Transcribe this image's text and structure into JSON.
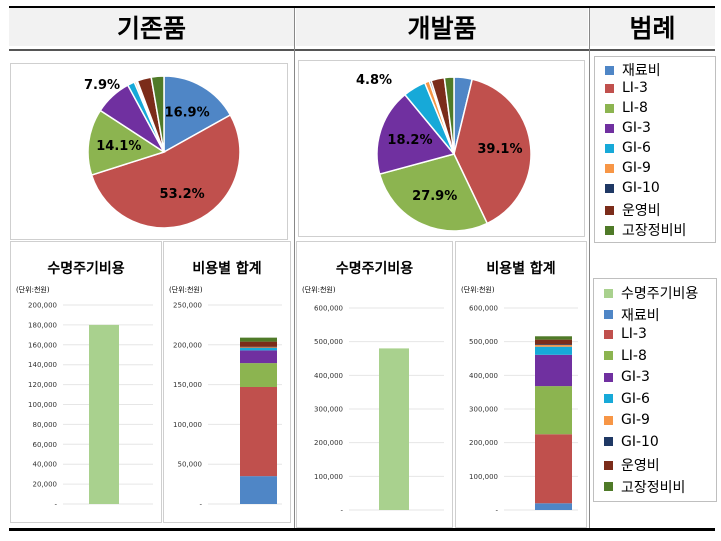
{
  "headers": {
    "existing": "기존품",
    "developed": "개발품",
    "legend": "범례"
  },
  "colors": {
    "재료비": "#4f86c6",
    "LI-3": "#c0504d",
    "LI-8": "#8cb450",
    "GI-3": "#7030a0",
    "GI-6": "#17a9d8",
    "GI-9": "#f79646",
    "GI-10": "#1f3864",
    "운영비": "#7b2c1a",
    "고장정비비": "#4f7a28",
    "수명주기비용": "#a9d18e"
  },
  "legend_top": {
    "items": [
      "재료비",
      "LI-3",
      "LI-8",
      "GI-3",
      "GI-6",
      "GI-9",
      "GI-10",
      "운영비",
      "고장정비비"
    ]
  },
  "legend_bottom": {
    "items": [
      "수명주기비용",
      "재료비",
      "LI-3",
      "LI-8",
      "GI-3",
      "GI-6",
      "GI-9",
      "GI-10",
      "운영비",
      "고장정비비"
    ]
  },
  "chart_data": [
    {
      "type": "pie",
      "id": "pie-existing",
      "slices": [
        {
          "name": "재료비",
          "value": 16.9,
          "label": "16.9%"
        },
        {
          "name": "LI-3",
          "value": 53.2,
          "label": "53.2%"
        },
        {
          "name": "LI-8",
          "value": 14.1,
          "label": "14.1%"
        },
        {
          "name": "GI-3",
          "value": 7.9,
          "label": "7.9%"
        },
        {
          "name": "GI-6",
          "value": 1.5,
          "label": ""
        },
        {
          "name": "GI-9",
          "value": 0.4,
          "label": ""
        },
        {
          "name": "GI-10",
          "value": 0.3,
          "label": ""
        },
        {
          "name": "운영비",
          "value": 3.0,
          "label": ""
        },
        {
          "name": "고장정비비",
          "value": 2.7,
          "label": ""
        }
      ]
    },
    {
      "type": "pie",
      "id": "pie-developed",
      "slices": [
        {
          "name": "재료비",
          "value": 3.8,
          "label": ""
        },
        {
          "name": "LI-3",
          "value": 39.1,
          "label": "39.1%"
        },
        {
          "name": "LI-8",
          "value": 27.9,
          "label": "27.9%"
        },
        {
          "name": "GI-3",
          "value": 18.2,
          "label": "18.2%"
        },
        {
          "name": "GI-6",
          "value": 4.8,
          "label": "4.8%"
        },
        {
          "name": "GI-9",
          "value": 1.0,
          "label": ""
        },
        {
          "name": "GI-10",
          "value": 0.4,
          "label": ""
        },
        {
          "name": "운영비",
          "value": 2.8,
          "label": ""
        },
        {
          "name": "고장정비비",
          "value": 2.0,
          "label": ""
        }
      ]
    },
    {
      "type": "bar",
      "id": "bar-lcc-existing",
      "title": "수명주기비용",
      "unit": "(단위:천원)",
      "ylim": [
        0,
        200000
      ],
      "ticks": [
        0,
        20000,
        40000,
        60000,
        80000,
        100000,
        120000,
        140000,
        160000,
        180000,
        200000
      ],
      "tick_labels": [
        "-",
        "20,000",
        "40,000",
        "60,000",
        "80,000",
        "100,000",
        "120,000",
        "140,000",
        "160,000",
        "180,000",
        "200,000"
      ],
      "stack": [
        {
          "name": "수명주기비용",
          "value": 180000
        }
      ]
    },
    {
      "type": "bar",
      "id": "bar-sum-existing",
      "title": "비용별 합계",
      "unit": "(단위:천원)",
      "ylim": [
        0,
        250000
      ],
      "ticks": [
        0,
        50000,
        100000,
        150000,
        200000,
        250000
      ],
      "tick_labels": [
        "-",
        "50,000",
        "100,000",
        "150,000",
        "200,000",
        "250,000"
      ],
      "stack": [
        {
          "name": "재료비",
          "value": 35000
        },
        {
          "name": "LI-3",
          "value": 112000
        },
        {
          "name": "LI-8",
          "value": 30000
        },
        {
          "name": "GI-3",
          "value": 16000
        },
        {
          "name": "GI-6",
          "value": 3000
        },
        {
          "name": "GI-9",
          "value": 1000
        },
        {
          "name": "GI-10",
          "value": 500
        },
        {
          "name": "운영비",
          "value": 6500
        },
        {
          "name": "고장정비비",
          "value": 5000
        }
      ]
    },
    {
      "type": "bar",
      "id": "bar-lcc-developed",
      "title": "수명주기비용",
      "unit": "(단위:천원)",
      "ylim": [
        0,
        600000
      ],
      "ticks": [
        0,
        100000,
        200000,
        300000,
        400000,
        500000,
        600000
      ],
      "tick_labels": [
        "-",
        "100,000",
        "200,000",
        "300,000",
        "400,000",
        "500,000",
        "600,000"
      ],
      "stack": [
        {
          "name": "수명주기비용",
          "value": 480000
        }
      ]
    },
    {
      "type": "bar",
      "id": "bar-sum-developed",
      "title": "비용별 합계",
      "unit": "(단위:천원)",
      "ylim": [
        0,
        600000
      ],
      "ticks": [
        0,
        100000,
        200000,
        300000,
        400000,
        500000,
        600000
      ],
      "tick_labels": [
        "-",
        "100,000",
        "200,000",
        "300,000",
        "400,000",
        "500,000",
        "600,000"
      ],
      "stack": [
        {
          "name": "재료비",
          "value": 20000
        },
        {
          "name": "LI-3",
          "value": 205000
        },
        {
          "name": "LI-8",
          "value": 143000
        },
        {
          "name": "GI-3",
          "value": 93000
        },
        {
          "name": "GI-6",
          "value": 24000
        },
        {
          "name": "GI-9",
          "value": 5000
        },
        {
          "name": "GI-10",
          "value": 2000
        },
        {
          "name": "운영비",
          "value": 14000
        },
        {
          "name": "고장정비비",
          "value": 10000
        }
      ]
    }
  ]
}
